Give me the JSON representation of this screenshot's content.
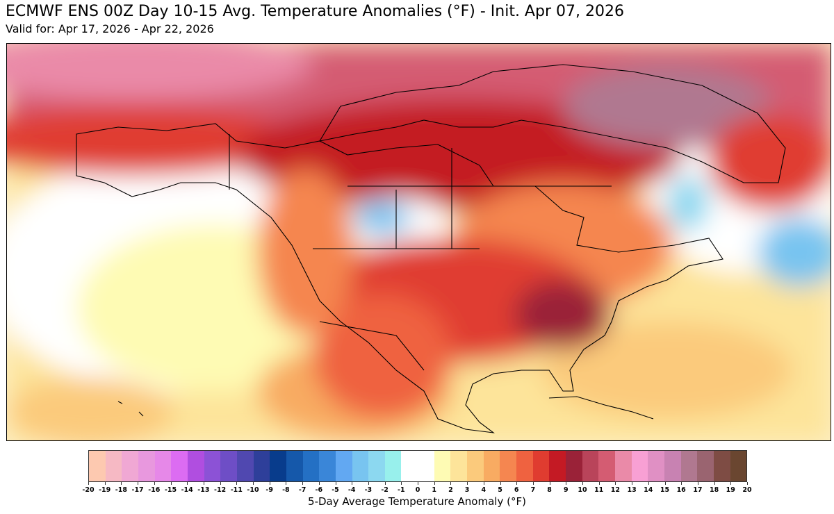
{
  "title": "ECMWF ENS 00Z Day 10-15 Avg. Temperature Anomalies (°F) - Init. Apr 07, 2026",
  "subtitle": "Valid for: Apr 17, 2026 - Apr 22, 2026",
  "colorbar": {
    "label": "5-Day Average Temperature Anomaly (°F)",
    "range": [
      -20,
      20
    ],
    "ticks": [
      "-20",
      "-19",
      "-18",
      "-17",
      "-16",
      "-15",
      "-14",
      "-13",
      "-12",
      "-11",
      "-10",
      "-9",
      "-8",
      "-7",
      "-6",
      "-5",
      "-4",
      "-3",
      "-2",
      "-1",
      "0",
      "1",
      "2",
      "3",
      "4",
      "5",
      "6",
      "7",
      "8",
      "9",
      "10",
      "11",
      "12",
      "13",
      "14",
      "15",
      "16",
      "17",
      "18",
      "19",
      "20"
    ],
    "colors": [
      "#fdc9b0",
      "#f6b9c4",
      "#f0a8d4",
      "#e898de",
      "#e688e8",
      "#dc6cf2",
      "#b04ee0",
      "#8c52d6",
      "#6e4ec6",
      "#5048b0",
      "#2e3f9a",
      "#083c8c",
      "#1558aa",
      "#2470c4",
      "#3a86d8",
      "#62a8f2",
      "#78c4f0",
      "#8cd8f0",
      "#98f0ec",
      "#ffffff",
      "#ffffff",
      "#fefbb4",
      "#fde49a",
      "#fbca7c",
      "#f8ab62",
      "#f58650",
      "#ef6240",
      "#e03c30",
      "#c41a24",
      "#9a2238",
      "#b9445a",
      "#d45c72",
      "#ea8aa8",
      "#f8a0d4",
      "#e090c4",
      "#c882b2",
      "#b07890",
      "#9a6470",
      "#7e4c44",
      "#6a4630"
    ]
  }
}
